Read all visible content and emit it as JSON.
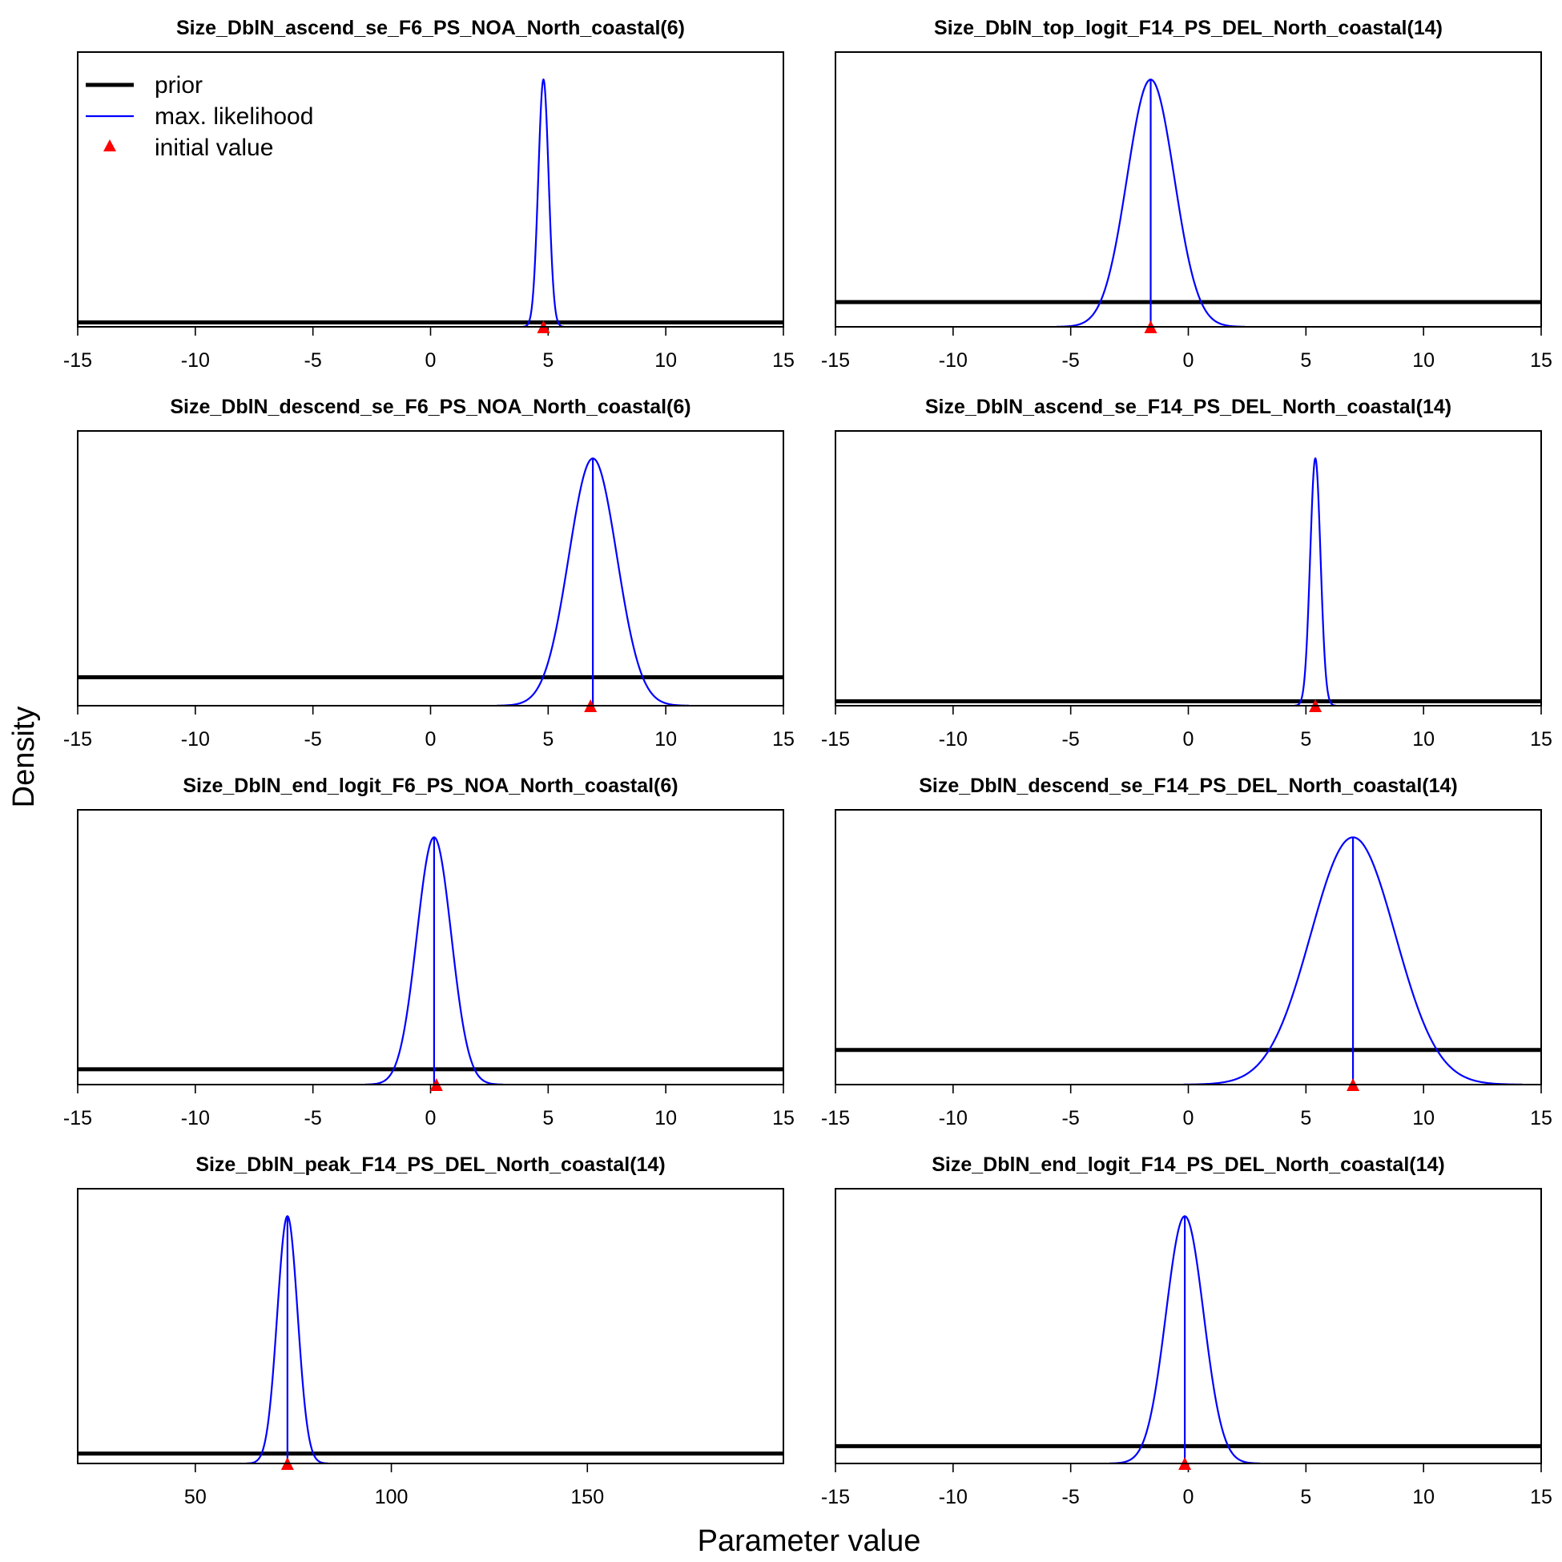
{
  "figure": {
    "xlabel": "Parameter value",
    "ylabel": "Density"
  },
  "legend": {
    "placement": "top-left of first panel",
    "entries": [
      {
        "label": "prior",
        "color": "#000000",
        "kind": "thick-line"
      },
      {
        "label": "max. likelihood",
        "color": "#0000ff",
        "kind": "line"
      },
      {
        "label": "initial value",
        "color": "#ff0000",
        "kind": "triangle"
      }
    ]
  },
  "colors": {
    "prior": "#000000",
    "max_likelihood": "#0000ff",
    "initial_value": "#ff0000"
  },
  "chart_data": [
    {
      "type": "line",
      "title": "Size_DblN_ascend_se_F6_PS_NOA_North_coastal(6)",
      "xlim": [
        -15,
        15
      ],
      "xticks": [
        -15,
        -10,
        -5,
        0,
        5,
        10,
        15
      ],
      "prior_level": 0.018,
      "ml_mean": 4.8,
      "ml_sd": 0.22,
      "initial_value": 4.8,
      "show_ml_line": false
    },
    {
      "type": "line",
      "title": "Size_DblN_top_logit_F14_PS_DEL_North_coastal(14)",
      "xlim": [
        -15,
        15
      ],
      "xticks": [
        -15,
        -10,
        -5,
        0,
        5,
        10,
        15
      ],
      "prior_level": 0.1,
      "ml_mean": -1.6,
      "ml_sd": 1.0,
      "initial_value": -1.6,
      "show_ml_line": true
    },
    {
      "type": "line",
      "title": "Size_DblN_descend_se_F6_PS_NOA_North_coastal(6)",
      "xlim": [
        -15,
        15
      ],
      "xticks": [
        -15,
        -10,
        -5,
        0,
        5,
        10,
        15
      ],
      "prior_level": 0.115,
      "ml_mean": 6.9,
      "ml_sd": 1.02,
      "initial_value": 6.8,
      "show_ml_line": true
    },
    {
      "type": "line",
      "title": "Size_DblN_ascend_se_F14_PS_DEL_North_coastal(14)",
      "xlim": [
        -15,
        15
      ],
      "xticks": [
        -15,
        -10,
        -5,
        0,
        5,
        10,
        15
      ],
      "prior_level": 0.018,
      "ml_mean": 5.4,
      "ml_sd": 0.22,
      "initial_value": 5.4,
      "show_ml_line": false
    },
    {
      "type": "line",
      "title": "Size_DblN_end_logit_F6_PS_NOA_North_coastal(6)",
      "xlim": [
        -15,
        15
      ],
      "xticks": [
        -15,
        -10,
        -5,
        0,
        5,
        10,
        15
      ],
      "prior_level": 0.062,
      "ml_mean": 0.15,
      "ml_sd": 0.73,
      "initial_value": 0.25,
      "show_ml_line": true
    },
    {
      "type": "line",
      "title": "Size_DblN_descend_se_F14_PS_DEL_North_coastal(14)",
      "xlim": [
        -15,
        15
      ],
      "xticks": [
        -15,
        -10,
        -5,
        0,
        5,
        10,
        15
      ],
      "prior_level": 0.14,
      "ml_mean": 7.0,
      "ml_sd": 1.8,
      "initial_value": 7.0,
      "show_ml_line": true
    },
    {
      "type": "line",
      "title": "Size_DblN_peak_F14_PS_DEL_North_coastal(14)",
      "xlim": [
        20,
        200
      ],
      "xticks": [
        50,
        100,
        150
      ],
      "prior_level": 0.04,
      "ml_mean": 73.5,
      "ml_sd": 2.6,
      "initial_value": 73.5,
      "show_ml_line": true
    },
    {
      "type": "line",
      "title": "Size_DblN_end_logit_F14_PS_DEL_North_coastal(14)",
      "xlim": [
        -15,
        15
      ],
      "xticks": [
        -15,
        -10,
        -5,
        0,
        5,
        10,
        15
      ],
      "prior_level": 0.07,
      "ml_mean": -0.15,
      "ml_sd": 0.8,
      "initial_value": -0.15,
      "show_ml_line": true
    }
  ]
}
